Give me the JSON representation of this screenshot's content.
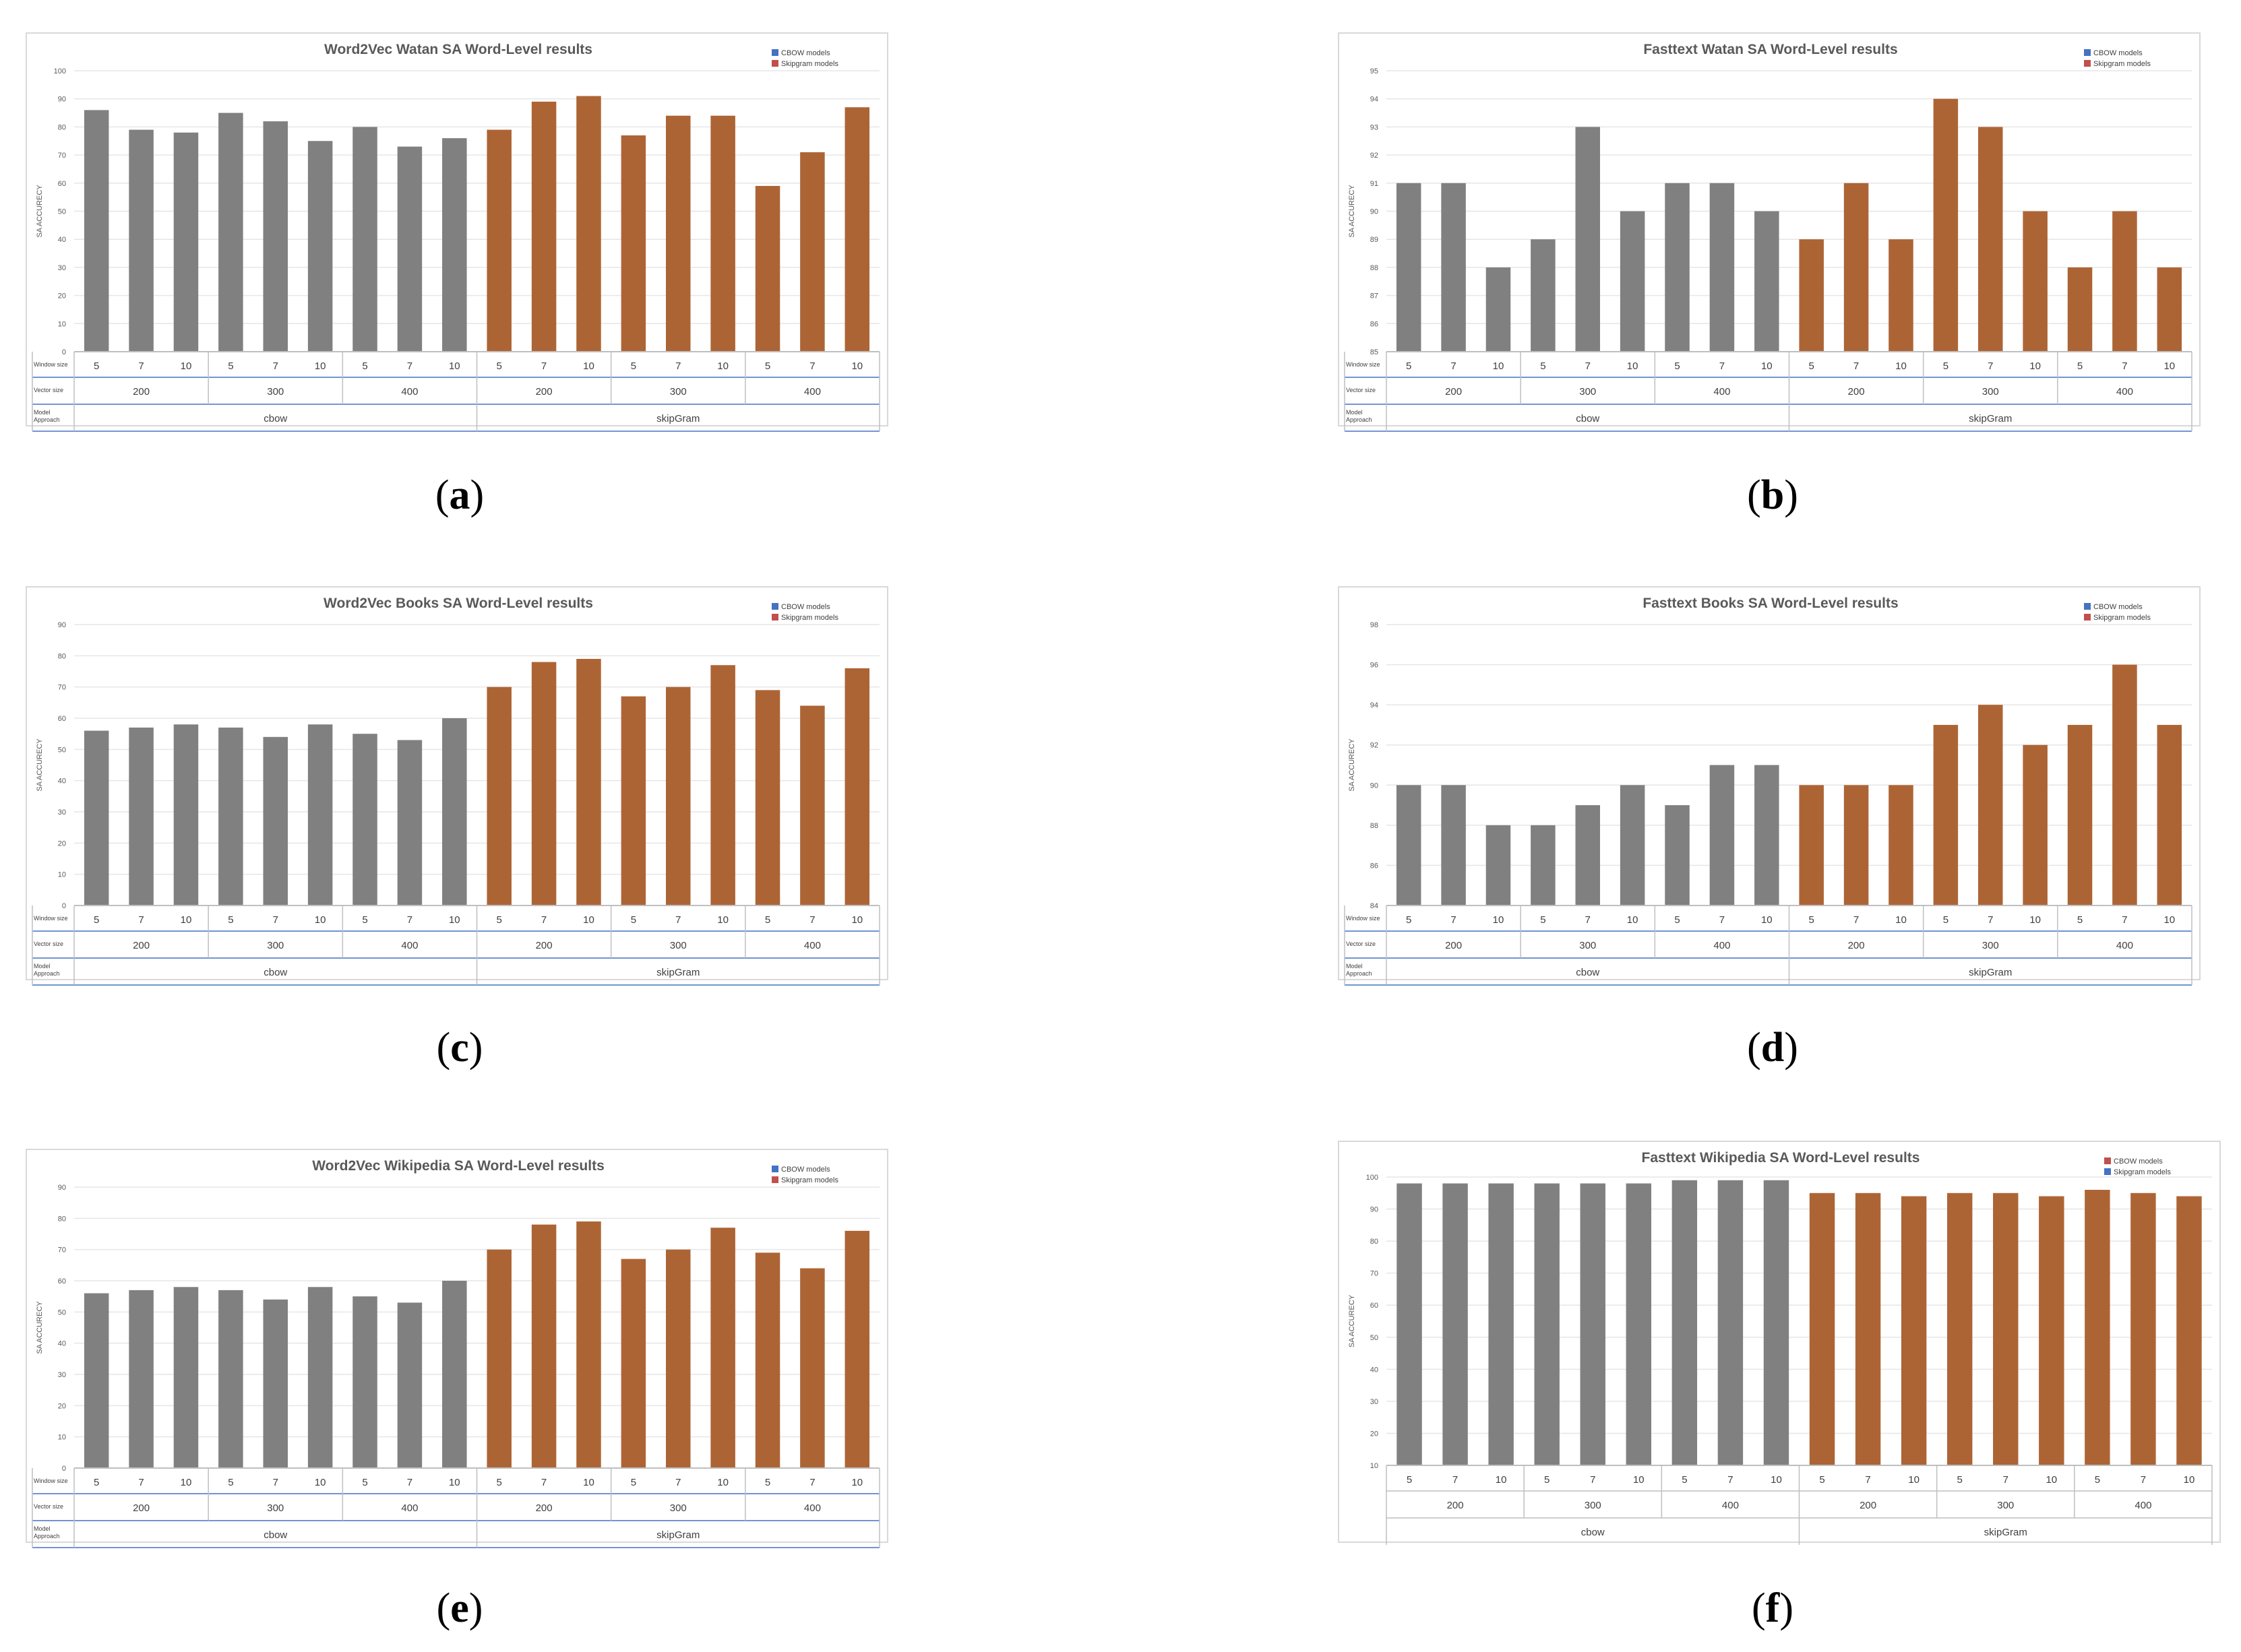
{
  "chart_data": [
    {
      "id": "a",
      "type": "bar",
      "title": "Word2Vec Watan SA Word-Level results",
      "ylabel": "SA ACCURECY",
      "ylim": [
        0,
        100
      ],
      "yticks": [
        0,
        10,
        20,
        30,
        40,
        50,
        60,
        70,
        80,
        90,
        100
      ],
      "legend": [
        {
          "label": "CBOW models",
          "color": "#4472c4"
        },
        {
          "label": "Skipgram models",
          "color": "#c0504d"
        }
      ],
      "row_labels": {
        "window": "Window size",
        "vector": "Vector size",
        "approach": "Model Approach"
      },
      "categories": [
        "5",
        "7",
        "10",
        "5",
        "7",
        "10",
        "5",
        "7",
        "10",
        "5",
        "7",
        "10",
        "5",
        "7",
        "10",
        "5",
        "7",
        "10"
      ],
      "vector_groups": [
        "200",
        "300",
        "400",
        "200",
        "300",
        "400"
      ],
      "approach_groups": [
        "cbow",
        "skipGram"
      ],
      "values": [
        86,
        79,
        78,
        85,
        82,
        75,
        80,
        73,
        76,
        79,
        89,
        91,
        77,
        84,
        84,
        59,
        71,
        87
      ]
    },
    {
      "id": "b",
      "type": "bar",
      "title": "Fasttext Watan SA Word-Level results",
      "ylabel": "SA ACCURECY",
      "ylim": [
        85,
        95
      ],
      "yticks": [
        85,
        86,
        87,
        88,
        89,
        90,
        91,
        92,
        93,
        94,
        95
      ],
      "legend": [
        {
          "label": "CBOW models",
          "color": "#4472c4"
        },
        {
          "label": "Skipgram models",
          "color": "#c0504d"
        }
      ],
      "row_labels": {
        "window": "Window size",
        "vector": "Vector size",
        "approach": "Model Approach"
      },
      "categories": [
        "5",
        "7",
        "10",
        "5",
        "7",
        "10",
        "5",
        "7",
        "10",
        "5",
        "7",
        "10",
        "5",
        "7",
        "10",
        "5",
        "7",
        "10"
      ],
      "vector_groups": [
        "200",
        "300",
        "400",
        "200",
        "300",
        "400"
      ],
      "approach_groups": [
        "cbow",
        "skipGram"
      ],
      "values": [
        91,
        91,
        88,
        89,
        93,
        90,
        91,
        91,
        90,
        89,
        91,
        89,
        94,
        93,
        90,
        88,
        90,
        88
      ]
    },
    {
      "id": "c",
      "type": "bar",
      "title": "Word2Vec Books SA Word-Level results",
      "ylabel": "SA ACCURECY",
      "ylim": [
        0,
        90
      ],
      "yticks": [
        0,
        10,
        20,
        30,
        40,
        50,
        60,
        70,
        80,
        90
      ],
      "legend": [
        {
          "label": "CBOW models",
          "color": "#4472c4"
        },
        {
          "label": "Skipgram models",
          "color": "#c0504d"
        }
      ],
      "row_labels": {
        "window": "Window size",
        "vector": "Vector size",
        "approach": "Model Approach"
      },
      "categories": [
        "5",
        "7",
        "10",
        "5",
        "7",
        "10",
        "5",
        "7",
        "10",
        "5",
        "7",
        "10",
        "5",
        "7",
        "10",
        "5",
        "7",
        "10"
      ],
      "vector_groups": [
        "200",
        "300",
        "400",
        "200",
        "300",
        "400"
      ],
      "approach_groups": [
        "cbow",
        "skipGram"
      ],
      "values": [
        56,
        57,
        58,
        57,
        54,
        58,
        55,
        53,
        60,
        70,
        78,
        79,
        67,
        70,
        77,
        69,
        64,
        76
      ]
    },
    {
      "id": "d",
      "type": "bar",
      "title": "Fasttext Books SA Word-Level results",
      "ylabel": "SA ACCURECY",
      "ylim": [
        84,
        98
      ],
      "yticks": [
        84,
        86,
        88,
        90,
        92,
        94,
        96,
        98
      ],
      "legend": [
        {
          "label": "CBOW models",
          "color": "#4472c4"
        },
        {
          "label": "Skipgram models",
          "color": "#c0504d"
        }
      ],
      "row_labels": {
        "window": "Window size",
        "vector": "Vector size",
        "approach": "Model Approach"
      },
      "categories": [
        "5",
        "7",
        "10",
        "5",
        "7",
        "10",
        "5",
        "7",
        "10",
        "5",
        "7",
        "10",
        "5",
        "7",
        "10",
        "5",
        "7",
        "10"
      ],
      "vector_groups": [
        "200",
        "300",
        "400",
        "200",
        "300",
        "400"
      ],
      "approach_groups": [
        "cbow",
        "skipGram"
      ],
      "values": [
        90,
        90,
        88,
        88,
        89,
        90,
        89,
        91,
        91,
        90,
        90,
        90,
        93,
        94,
        92,
        93,
        96,
        93
      ]
    },
    {
      "id": "e",
      "type": "bar",
      "title": "Word2Vec Wikipedia SA Word-Level results",
      "ylabel": "SA ACCURECY",
      "ylim": [
        0,
        90
      ],
      "yticks": [
        0,
        10,
        20,
        30,
        40,
        50,
        60,
        70,
        80,
        90
      ],
      "legend": [
        {
          "label": "CBOW models",
          "color": "#4472c4"
        },
        {
          "label": "Skipgram models",
          "color": "#c0504d"
        }
      ],
      "row_labels": {
        "window": "Window size",
        "vector": "Vector size",
        "approach": "Model Approach"
      },
      "categories": [
        "5",
        "7",
        "10",
        "5",
        "7",
        "10",
        "5",
        "7",
        "10",
        "5",
        "7",
        "10",
        "5",
        "7",
        "10",
        "5",
        "7",
        "10"
      ],
      "vector_groups": [
        "200",
        "300",
        "400",
        "200",
        "300",
        "400"
      ],
      "approach_groups": [
        "cbow",
        "skipGram"
      ],
      "values": [
        56,
        57,
        58,
        57,
        54,
        58,
        55,
        53,
        60,
        70,
        78,
        79,
        67,
        70,
        77,
        69,
        64,
        76
      ]
    },
    {
      "id": "f",
      "type": "bar",
      "title": "Fasttext Wikipedia SA Word-Level results",
      "ylabel": "SA ACCURECY",
      "ylim": [
        10,
        100
      ],
      "yticks": [
        10,
        20,
        30,
        40,
        50,
        60,
        70,
        80,
        90,
        100
      ],
      "legend": [
        {
          "label": "CBOW models",
          "color": "#c0504d"
        },
        {
          "label": "Skipgram models",
          "color": "#4472c4"
        }
      ],
      "row_labels": null,
      "categories": [
        "5",
        "7",
        "10",
        "5",
        "7",
        "10",
        "5",
        "7",
        "10",
        "5",
        "7",
        "10",
        "5",
        "7",
        "10",
        "5",
        "7",
        "10"
      ],
      "vector_groups": [
        "200",
        "300",
        "400",
        "200",
        "300",
        "400"
      ],
      "approach_groups": [
        "cbow",
        "skipGram"
      ],
      "values": [
        98,
        98,
        98,
        98,
        98,
        98,
        99,
        99,
        99,
        95,
        95,
        94,
        95,
        95,
        94,
        96,
        95,
        94
      ]
    }
  ],
  "captions": {
    "a": "a",
    "b": "b",
    "c": "c",
    "d": "d",
    "e": "e",
    "f": "f"
  },
  "colors": {
    "cbow_bar": "#808080",
    "skipgram_bar": "#ad6435",
    "grid": "#e6e6e6",
    "axis_line": "#4472c4"
  }
}
